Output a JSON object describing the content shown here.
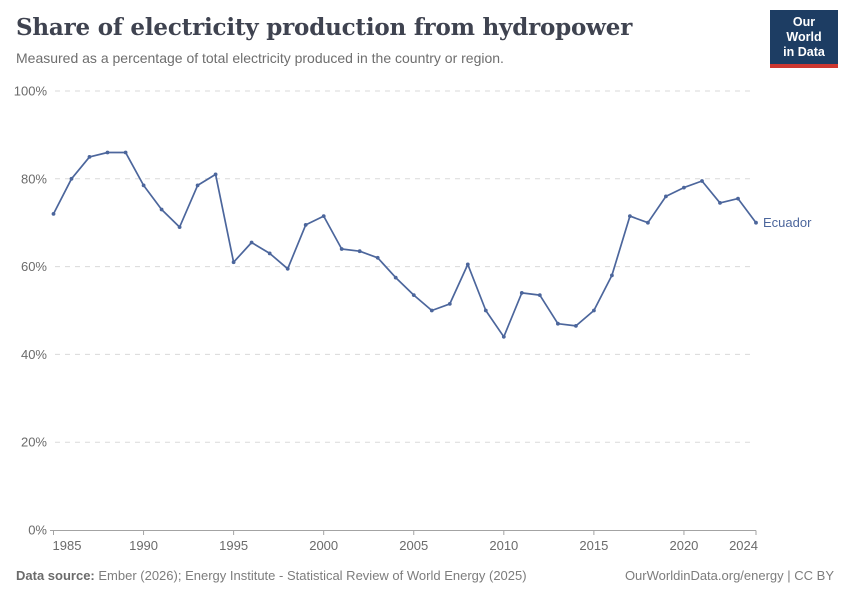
{
  "header": {
    "title": "Share of electricity production from hydropower",
    "subtitle": "Measured as a percentage of total electricity produced in the country or region."
  },
  "logo": {
    "line1": "Our World",
    "line2": "in Data",
    "bg_color": "#1d3d63",
    "accent_color": "#cd3730"
  },
  "chart_data": {
    "type": "line",
    "title": "Share of electricity production from hydropower",
    "xlabel": "",
    "ylabel": "",
    "ylim": [
      0,
      100
    ],
    "xlim": [
      1985,
      2024
    ],
    "yticks": [
      0,
      20,
      40,
      60,
      80,
      100
    ],
    "ytick_suffix": "%",
    "xticks": [
      1985,
      1990,
      1995,
      2000,
      2005,
      2010,
      2015,
      2020,
      2024
    ],
    "grid": "horizontal-dashed",
    "legend_position": "end-of-line-label",
    "x": [
      1985,
      1986,
      1987,
      1988,
      1989,
      1990,
      1991,
      1992,
      1993,
      1994,
      1995,
      1996,
      1997,
      1998,
      1999,
      2000,
      2001,
      2002,
      2003,
      2004,
      2005,
      2006,
      2007,
      2008,
      2009,
      2010,
      2011,
      2012,
      2013,
      2014,
      2015,
      2016,
      2017,
      2018,
      2019,
      2020,
      2021,
      2022,
      2023,
      2024
    ],
    "series": [
      {
        "name": "Ecuador",
        "color": "#4c669c",
        "values": [
          72,
          80,
          85,
          86,
          86,
          78.5,
          73,
          69,
          78.5,
          81,
          61,
          65.5,
          63,
          59.5,
          69.5,
          71.5,
          64,
          63.5,
          62,
          57.5,
          53.5,
          50,
          51.5,
          60.5,
          50,
          44,
          54,
          53.5,
          47,
          46.5,
          50,
          58,
          71.5,
          70,
          76,
          78,
          79.5,
          74.5,
          75.5,
          70
        ]
      }
    ],
    "style": {
      "gridline_color": "#dadada",
      "axis_color": "#a3a3a3",
      "tick_label_color": "#6b6b6b"
    }
  },
  "footer": {
    "source_label": "Data source:",
    "source_text": " Ember (2026); Energy Institute - Statistical Review of World Energy (2025)",
    "credit": "OurWorldinData.org/energy | CC BY"
  }
}
